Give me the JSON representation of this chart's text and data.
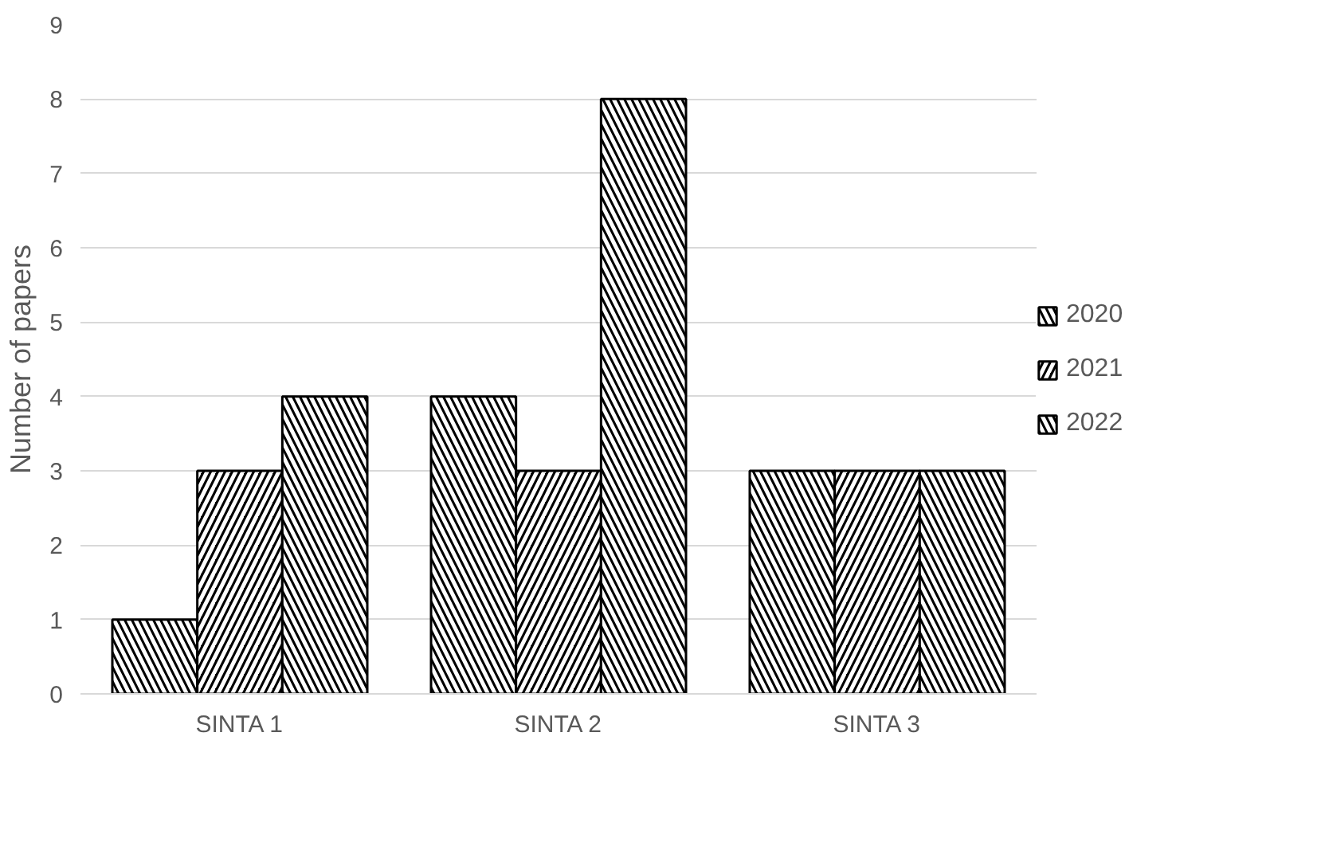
{
  "chart_data": {
    "type": "bar",
    "ylabel": "Number of papers",
    "categories": [
      "SINTA 1",
      "SINTA 2",
      "SINTA 3"
    ],
    "series": [
      {
        "name": "2020",
        "color": "#000000",
        "values": [
          1,
          4,
          3
        ]
      },
      {
        "name": "2021",
        "color": "#000000",
        "values": [
          3,
          3,
          3
        ]
      },
      {
        "name": "2022",
        "color": "#000000",
        "values": [
          4,
          8,
          3
        ]
      }
    ],
    "ylim": [
      0,
      9
    ],
    "yticks": [
      0,
      1,
      2,
      3,
      4,
      5,
      6,
      7,
      8,
      9
    ],
    "grid": "y",
    "legend": "right"
  }
}
